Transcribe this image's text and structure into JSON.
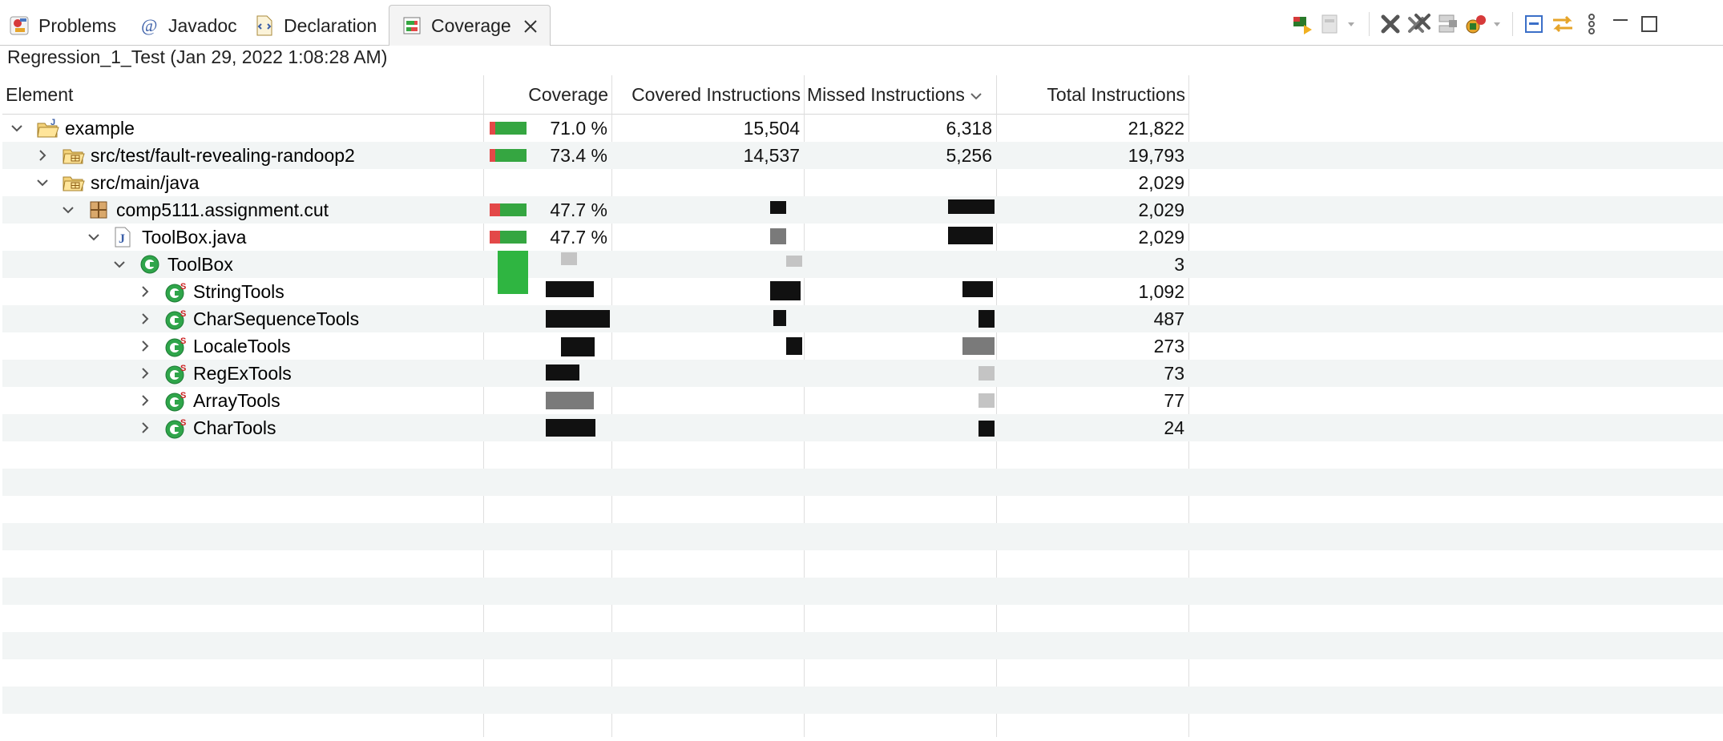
{
  "tabs": [
    {
      "label": "Problems",
      "icon": "problems-icon"
    },
    {
      "label": "Javadoc",
      "icon": "javadoc-icon"
    },
    {
      "label": "Declaration",
      "icon": "declaration-icon"
    },
    {
      "label": "Coverage",
      "icon": "coverage-icon",
      "active": true
    }
  ],
  "toolbar": {
    "icons": [
      "relaunch-coverage-icon",
      "select-session-dropdown-icon",
      "remove-session-icon",
      "remove-all-sessions-icon",
      "merge-sessions-icon",
      "import-coverage-icon",
      "collapse-all-icon",
      "link-with-editor-icon",
      "view-menu-icon",
      "minimize-icon",
      "maximize-icon"
    ]
  },
  "session": "Regression_1_Test (Jan 29, 2022 1:08:28 AM)",
  "columns": [
    "Element",
    "Coverage",
    "Covered Instructions",
    "Missed Instructions",
    "Total Instructions"
  ],
  "sort_column": "Missed Instructions",
  "rows": [
    {
      "label": "example",
      "icon": "java-project-icon",
      "expanded": true,
      "coverage": "71.0 %",
      "covered": "15,504",
      "missed": "6,318",
      "total": "21,822",
      "ratio": 0.71
    },
    {
      "label": "src/test/fault-revealing-randoop2",
      "icon": "source-folder-icon",
      "expanded": false,
      "coverage": "73.4 %",
      "covered": "14,537",
      "missed": "5,256",
      "total": "19,793",
      "ratio": 0.734
    },
    {
      "label": "src/main/java",
      "icon": "source-folder-icon",
      "expanded": true,
      "coverage": "",
      "covered": "",
      "missed": "",
      "total": "2,029",
      "ratio": null
    },
    {
      "label": "comp5111.assignment.cut",
      "icon": "package-icon",
      "expanded": true,
      "coverage": "47.7 %",
      "covered": "",
      "missed": "",
      "total": "2,029",
      "ratio": 0.477
    },
    {
      "label": "ToolBox.java",
      "icon": "java-file-icon",
      "expanded": true,
      "coverage": "47.7 %",
      "covered": "",
      "missed": "",
      "total": "2,029",
      "ratio": 0.477
    },
    {
      "label": "ToolBox",
      "icon": "class-icon",
      "expanded": true,
      "coverage": "",
      "covered": "",
      "missed": "",
      "total": "3",
      "ratio": null
    },
    {
      "label": "StringTools",
      "icon": "static-class-icon",
      "expanded": false,
      "coverage": "",
      "covered": "",
      "missed": "",
      "total": "1,092",
      "ratio": null
    },
    {
      "label": "CharSequenceTools",
      "icon": "static-class-icon",
      "expanded": false,
      "coverage": "",
      "covered": "",
      "missed": "",
      "total": "487",
      "ratio": null
    },
    {
      "label": "LocaleTools",
      "icon": "static-class-icon",
      "expanded": false,
      "coverage": "",
      "covered": "",
      "missed": "",
      "total": "273",
      "ratio": null
    },
    {
      "label": "RegExTools",
      "icon": "static-class-icon",
      "expanded": false,
      "coverage": "",
      "covered": "",
      "missed": "",
      "total": "73",
      "ratio": null
    },
    {
      "label": "ArrayTools",
      "icon": "static-class-icon",
      "expanded": false,
      "coverage": "",
      "covered": "",
      "missed": "",
      "total": "77",
      "ratio": null
    },
    {
      "label": "CharTools",
      "icon": "static-class-icon",
      "expanded": false,
      "coverage": "",
      "covered": "",
      "missed": "",
      "total": "24",
      "ratio": null
    }
  ],
  "colors": {
    "bar_hit": "#35a641",
    "bar_miss": "#e34848",
    "row_alt": "#f2f5f5"
  }
}
